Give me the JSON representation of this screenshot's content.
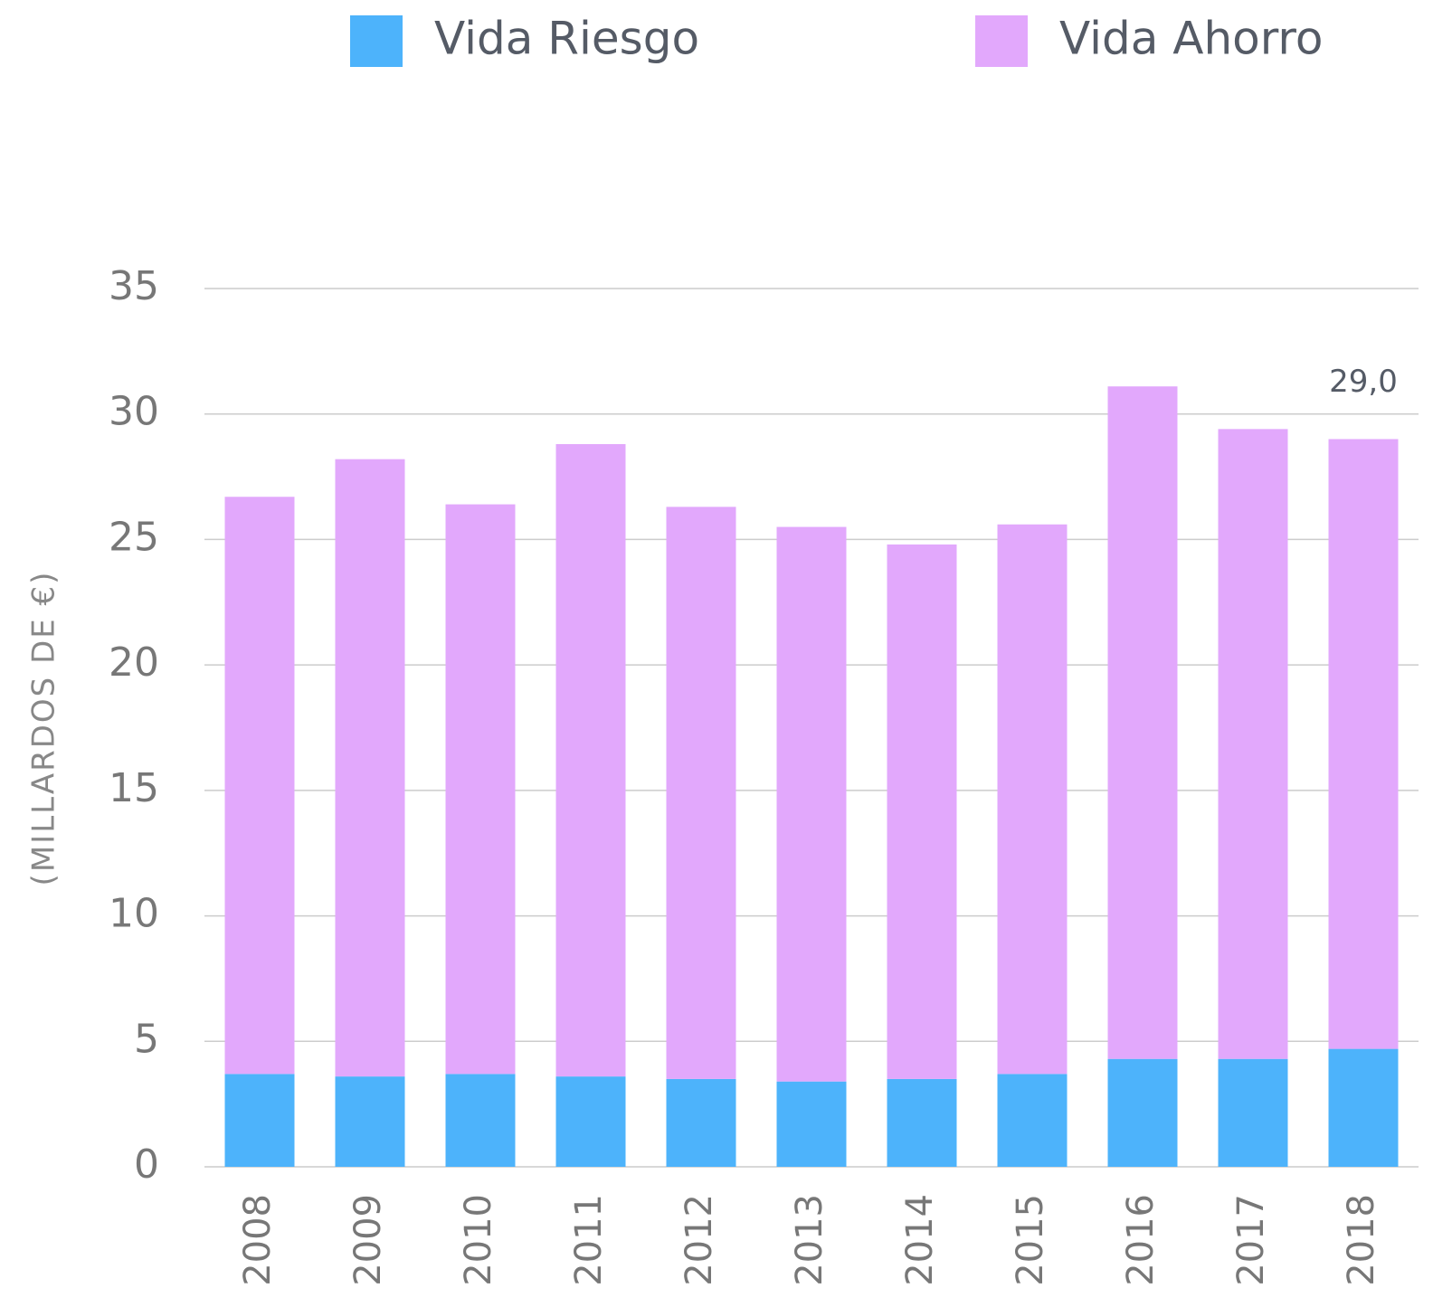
{
  "chart_data": {
    "type": "stacked_bar",
    "y_axis_label": "(MILLARDOS DE €)",
    "categories": [
      "2008",
      "2009",
      "2010",
      "2011",
      "2012",
      "2013",
      "2014",
      "2015",
      "2016",
      "2017",
      "2018"
    ],
    "series": [
      {
        "name": "Vida Riesgo",
        "color": "#4db3fb",
        "values": [
          3.7,
          3.6,
          3.7,
          3.6,
          3.5,
          3.4,
          3.5,
          3.7,
          4.3,
          4.3,
          4.7
        ]
      },
      {
        "name": "Vida Ahorro",
        "color": "#e2a8fc",
        "values": [
          23.0,
          24.6,
          22.7,
          25.2,
          22.8,
          22.1,
          21.3,
          21.9,
          26.8,
          25.1,
          24.3
        ]
      }
    ],
    "annotation": {
      "x": "2018",
      "value": 29.0,
      "label": "29,0"
    },
    "ylim": [
      0,
      35
    ],
    "yticks": [
      0,
      5,
      10,
      15,
      20,
      25,
      30,
      35
    ],
    "grid": true,
    "legend": "top"
  }
}
